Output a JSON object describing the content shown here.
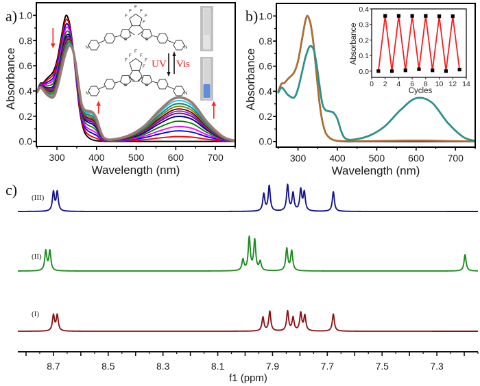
{
  "chart_data": [
    {
      "panel": "a",
      "panel_label": "a)",
      "type": "line",
      "title": "",
      "xlabel": "Wavelength (nm)",
      "ylabel": "Absorbance",
      "xlim": [
        248,
        750
      ],
      "ylim": [
        -0.04,
        1.1
      ],
      "xticks": [
        300,
        400,
        500,
        600,
        700
      ],
      "xtick_labels": [
        "300",
        "400",
        "500",
        "600",
        "700"
      ],
      "xminor": [
        250,
        350,
        450,
        550,
        650,
        750
      ],
      "yticks": [
        0.0,
        0.2,
        0.4,
        0.6,
        0.8,
        1.0
      ],
      "ytick_labels": [
        "0.0",
        "0.2",
        "0.4",
        "0.6",
        "0.8",
        "1.0"
      ],
      "yminor": [
        0.1,
        0.3,
        0.5,
        0.7,
        0.9
      ],
      "grid": false,
      "legend": "none",
      "x": [
        250,
        258,
        265,
        275,
        290,
        300,
        310,
        318,
        323,
        328,
        333,
        340,
        347,
        355,
        362,
        370,
        380,
        390,
        400,
        410,
        420,
        440,
        480,
        520,
        560,
        600,
        640,
        680,
        720,
        750
      ],
      "series": [
        {
          "color": "#000000",
          "values": [
            0.4,
            0.46,
            0.465,
            0.5,
            0.55,
            0.64,
            0.81,
            0.95,
            1.0,
            0.98,
            0.92,
            0.76,
            0.54,
            0.3,
            0.16,
            0.07,
            0.03,
            0.012,
            0.005,
            0.002,
            0.0,
            0.0,
            0.0,
            0.0,
            0.0,
            0.0,
            0.0,
            0.0,
            0.0,
            0.0
          ]
        },
        {
          "color": "#ff0000",
          "values": [
            0.399,
            0.457,
            0.459,
            0.486,
            0.528,
            0.616,
            0.781,
            0.918,
            0.968,
            0.955,
            0.902,
            0.757,
            0.549,
            0.315,
            0.175,
            0.09,
            0.053,
            0.036,
            0.024,
            0.011,
            0.003,
            0.002,
            0.005,
            0.013,
            0.028,
            0.038,
            0.034,
            0.017,
            0.004,
            0.001
          ]
        },
        {
          "color": "#0000ff",
          "values": [
            0.398,
            0.453,
            0.452,
            0.469,
            0.502,
            0.587,
            0.748,
            0.88,
            0.93,
            0.925,
            0.882,
            0.753,
            0.559,
            0.334,
            0.194,
            0.113,
            0.08,
            0.064,
            0.047,
            0.021,
            0.006,
            0.004,
            0.011,
            0.029,
            0.06,
            0.083,
            0.074,
            0.036,
            0.008,
            0.001
          ]
        },
        {
          "color": "#ff00ff",
          "values": [
            0.397,
            0.45,
            0.446,
            0.456,
            0.482,
            0.565,
            0.722,
            0.851,
            0.901,
            0.902,
            0.866,
            0.75,
            0.567,
            0.348,
            0.208,
            0.131,
            0.101,
            0.086,
            0.065,
            0.029,
            0.009,
            0.005,
            0.015,
            0.041,
            0.085,
            0.117,
            0.105,
            0.051,
            0.012,
            0.002
          ]
        },
        {
          "color": "#008000",
          "values": [
            0.395,
            0.446,
            0.44,
            0.44,
            0.458,
            0.539,
            0.69,
            0.817,
            0.867,
            0.874,
            0.846,
            0.746,
            0.577,
            0.364,
            0.224,
            0.153,
            0.127,
            0.112,
            0.086,
            0.038,
            0.012,
            0.007,
            0.021,
            0.055,
            0.115,
            0.159,
            0.143,
            0.069,
            0.016,
            0.002
          ]
        },
        {
          "color": "#000080",
          "values": [
            0.394,
            0.443,
            0.434,
            0.426,
            0.436,
            0.515,
            0.662,
            0.785,
            0.835,
            0.849,
            0.829,
            0.743,
            0.586,
            0.38,
            0.24,
            0.173,
            0.15,
            0.136,
            0.105,
            0.046,
            0.014,
            0.009,
            0.026,
            0.068,
            0.143,
            0.197,
            0.177,
            0.086,
            0.02,
            0.003
          ]
        },
        {
          "color": "#800080",
          "values": [
            0.394,
            0.441,
            0.43,
            0.417,
            0.422,
            0.499,
            0.644,
            0.764,
            0.814,
            0.833,
            0.818,
            0.741,
            0.591,
            0.39,
            0.25,
            0.185,
            0.164,
            0.152,
            0.117,
            0.052,
            0.016,
            0.01,
            0.029,
            0.077,
            0.16,
            0.221,
            0.198,
            0.096,
            0.022,
            0.003
          ]
        },
        {
          "color": "#7b3fd0",
          "values": [
            0.393,
            0.439,
            0.427,
            0.41,
            0.412,
            0.488,
            0.631,
            0.75,
            0.8,
            0.821,
            0.81,
            0.739,
            0.595,
            0.397,
            0.257,
            0.194,
            0.175,
            0.162,
            0.126,
            0.056,
            0.017,
            0.01,
            0.031,
            0.083,
            0.173,
            0.238,
            0.214,
            0.104,
            0.024,
            0.003
          ]
        },
        {
          "color": "#800000",
          "values": [
            0.393,
            0.438,
            0.424,
            0.404,
            0.402,
            0.477,
            0.618,
            0.735,
            0.785,
            0.81,
            0.802,
            0.738,
            0.599,
            0.404,
            0.264,
            0.203,
            0.185,
            0.173,
            0.135,
            0.06,
            0.019,
            0.011,
            0.033,
            0.089,
            0.185,
            0.255,
            0.229,
            0.111,
            0.026,
            0.004
          ]
        },
        {
          "color": "#808000",
          "values": [
            0.392,
            0.436,
            0.421,
            0.396,
            0.39,
            0.464,
            0.602,
            0.718,
            0.768,
            0.796,
            0.792,
            0.736,
            0.604,
            0.412,
            0.272,
            0.214,
            0.198,
            0.186,
            0.145,
            0.064,
            0.02,
            0.012,
            0.036,
            0.096,
            0.2,
            0.276,
            0.248,
            0.12,
            0.028,
            0.004
          ]
        },
        {
          "color": "#008080",
          "values": [
            0.391,
            0.434,
            0.418,
            0.388,
            0.378,
            0.451,
            0.586,
            0.701,
            0.751,
            0.782,
            0.782,
            0.734,
            0.609,
            0.42,
            0.28,
            0.225,
            0.211,
            0.199,
            0.156,
            0.069,
            0.022,
            0.013,
            0.039,
            0.103,
            0.215,
            0.297,
            0.267,
            0.129,
            0.03,
            0.004
          ]
        },
        {
          "color": "#14c3e0",
          "values": [
            0.391,
            0.432,
            0.414,
            0.379,
            0.364,
            0.435,
            0.568,
            0.68,
            0.73,
            0.766,
            0.771,
            0.732,
            0.614,
            0.43,
            0.29,
            0.237,
            0.225,
            0.215,
            0.168,
            0.075,
            0.023,
            0.014,
            0.042,
            0.112,
            0.233,
            0.321,
            0.288,
            0.14,
            0.033,
            0.005
          ]
        },
        {
          "color": "#9c7a72",
          "values": [
            0.39,
            0.43,
            0.41,
            0.37,
            0.35,
            0.42,
            0.55,
            0.66,
            0.71,
            0.75,
            0.76,
            0.73,
            0.62,
            0.44,
            0.3,
            0.25,
            0.24,
            0.23,
            0.18,
            0.08,
            0.025,
            0.015,
            0.045,
            0.12,
            0.25,
            0.345,
            0.31,
            0.15,
            0.035,
            0.005
          ]
        }
      ],
      "annotations": {
        "uv_label": "UV",
        "vis_label": "Vis",
        "label_color": "#ee1c1c",
        "atom_labels": {
          "F": "F",
          "S": "S",
          "N": "N"
        },
        "trend_arrows": [
          {
            "direction": "down",
            "x_nm": 290,
            "y_from": 0.9,
            "y_to": 0.74
          },
          {
            "direction": "up",
            "x_nm": 405,
            "y_from": 0.22,
            "y_to": 0.32
          },
          {
            "direction": "up",
            "x_nm": 696,
            "y_from": 0.18,
            "y_to": 0.32
          }
        ],
        "arrow_color": "#ff2020",
        "vials": [
          {
            "state": "open form (colorless)",
            "liquid_color": "#e4e4e4"
          },
          {
            "state": "closed form (blue)",
            "liquid_color": "#5f8fda"
          }
        ]
      }
    },
    {
      "panel": "b",
      "panel_label": "b)",
      "type": "line",
      "title": "",
      "xlabel": "Wavelength (nm)",
      "ylabel": "Absorbance",
      "xlim": [
        245,
        750
      ],
      "ylim": [
        -0.045,
        1.1
      ],
      "xticks": [
        300,
        400,
        500,
        600,
        700
      ],
      "xtick_labels": [
        "300",
        "400",
        "500",
        "600",
        "700"
      ],
      "xminor": [
        250,
        350,
        450,
        550,
        650,
        750
      ],
      "yticks": [
        0.0,
        0.2,
        0.4,
        0.6,
        0.8,
        1.0
      ],
      "ytick_labels": [
        "0.0",
        "0.2",
        "0.4",
        "0.6",
        "0.8",
        "1.0"
      ],
      "yminor": [
        0.1,
        0.3,
        0.5,
        0.7,
        0.9
      ],
      "grid": false,
      "legend": "none",
      "x": [
        250,
        258,
        265,
        275,
        290,
        300,
        310,
        318,
        323,
        328,
        333,
        340,
        347,
        355,
        362,
        370,
        380,
        390,
        400,
        410,
        420,
        440,
        480,
        520,
        560,
        600,
        640,
        680,
        720,
        750
      ],
      "series": [
        {
          "color": "#2a2ad0",
          "values": [
            0.4,
            0.46,
            0.465,
            0.5,
            0.55,
            0.64,
            0.81,
            0.95,
            1.0,
            0.98,
            0.92,
            0.76,
            0.54,
            0.3,
            0.16,
            0.07,
            0.03,
            0.012,
            0.005,
            0.002,
            0.0,
            0.0,
            0.0,
            0.0,
            0.0,
            0.0,
            0.0,
            0.0,
            0.0,
            0.0
          ]
        },
        {
          "color": "#8a3a9a",
          "values": [
            0.39,
            0.43,
            0.41,
            0.37,
            0.35,
            0.42,
            0.55,
            0.66,
            0.71,
            0.75,
            0.76,
            0.73,
            0.62,
            0.44,
            0.3,
            0.25,
            0.24,
            0.23,
            0.18,
            0.08,
            0.025,
            0.015,
            0.045,
            0.12,
            0.25,
            0.345,
            0.31,
            0.15,
            0.035,
            0.005
          ]
        },
        {
          "color": "#b0702a",
          "values": [
            0.4,
            0.46,
            0.465,
            0.5,
            0.55,
            0.64,
            0.81,
            0.95,
            1.0,
            0.98,
            0.92,
            0.76,
            0.54,
            0.3,
            0.16,
            0.07,
            0.03,
            0.012,
            0.006,
            0.004,
            0.003,
            0.002,
            0.003,
            0.005,
            0.007,
            0.008,
            0.007,
            0.004,
            0.002,
            0.001
          ]
        },
        {
          "color": "#26958a",
          "values": [
            0.39,
            0.43,
            0.41,
            0.37,
            0.35,
            0.42,
            0.55,
            0.66,
            0.71,
            0.75,
            0.76,
            0.73,
            0.62,
            0.44,
            0.3,
            0.25,
            0.24,
            0.23,
            0.18,
            0.08,
            0.025,
            0.015,
            0.045,
            0.12,
            0.25,
            0.345,
            0.31,
            0.15,
            0.035,
            0.005
          ]
        }
      ]
    },
    {
      "panel": "b-inset",
      "type": "line",
      "title": "",
      "xlabel": "Cycles",
      "ylabel": "Absorbance",
      "xlim": [
        0,
        14
      ],
      "ylim": [
        -0.04,
        0.4
      ],
      "xticks": [
        0,
        2,
        4,
        6,
        8,
        10,
        12,
        14
      ],
      "xtick_labels": [
        "0",
        "2",
        "4",
        "6",
        "8",
        "10",
        "12",
        "14"
      ],
      "yticks": [
        0.0,
        0.1,
        0.2,
        0.3,
        0.4
      ],
      "ytick_labels": [
        "0.0",
        "0.1",
        "0.2",
        "0.3",
        "0.4"
      ],
      "grid": false,
      "line_color": "#ff1a1a",
      "marker_color": "#000000",
      "x": [
        1,
        2,
        3,
        4,
        5,
        6,
        7,
        8,
        9,
        10,
        11,
        12,
        13
      ],
      "values": [
        0.0,
        0.355,
        0.0,
        0.355,
        0.005,
        0.355,
        0.012,
        0.355,
        0.005,
        0.353,
        0.0,
        0.353,
        0.01
      ]
    },
    {
      "panel": "c",
      "panel_label": "c)",
      "type": "line",
      "title": "",
      "xlabel": "f1 (ppm)",
      "ylabel": "",
      "xlim": [
        8.83,
        7.15
      ],
      "xticks": [
        8.7,
        8.5,
        8.3,
        8.1,
        7.9,
        7.7,
        7.5,
        7.3
      ],
      "xtick_labels": [
        "8.7",
        "8.5",
        "8.3",
        "8.1",
        "7.9",
        "7.7",
        "7.5",
        "7.3"
      ],
      "major_tick_step": 0.1,
      "minor_tick_step": 0.05,
      "grid": false,
      "series": [
        {
          "label": "(III)",
          "color": "#13138c",
          "peaks": [
            [
              8.7,
              0.58
            ],
            [
              8.686,
              0.58
            ],
            [
              7.932,
              0.52
            ],
            [
              7.912,
              0.77
            ],
            [
              7.845,
              0.79
            ],
            [
              7.825,
              0.54
            ],
            [
              7.797,
              0.64
            ],
            [
              7.784,
              0.56
            ],
            [
              7.678,
              0.6
            ]
          ]
        },
        {
          "label": "(II)",
          "color": "#1b8c1b",
          "peaks": [
            [
              8.728,
              0.6
            ],
            [
              8.713,
              0.6
            ],
            [
              8.008,
              0.33
            ],
            [
              7.985,
              1.0
            ],
            [
              7.965,
              0.92
            ],
            [
              7.945,
              0.27
            ],
            [
              7.848,
              0.67
            ],
            [
              7.83,
              0.6
            ],
            [
              7.197,
              0.5
            ]
          ]
        },
        {
          "label": "(I)",
          "color": "#8b1414",
          "peaks": [
            [
              8.7,
              0.48
            ],
            [
              8.686,
              0.48
            ],
            [
              7.935,
              0.42
            ],
            [
              7.91,
              0.6
            ],
            [
              7.845,
              0.6
            ],
            [
              7.825,
              0.4
            ],
            [
              7.797,
              0.54
            ],
            [
              7.782,
              0.46
            ],
            [
              7.678,
              0.52
            ]
          ]
        }
      ]
    }
  ]
}
